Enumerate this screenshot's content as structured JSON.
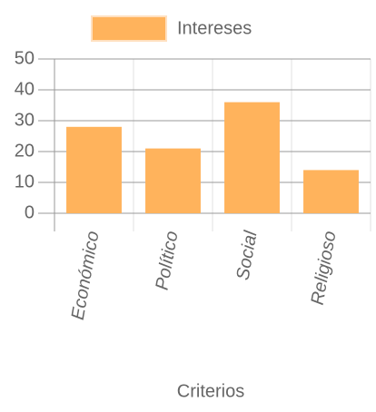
{
  "chart_data": {
    "type": "bar",
    "categories": [
      "Económico",
      "Político",
      "Social",
      "Religioso"
    ],
    "series": [
      {
        "name": "Intereses",
        "color": "#ffb35c",
        "values": [
          28,
          21,
          36,
          14
        ]
      }
    ],
    "x_label": "Criterios",
    "ylim": [
      0,
      50
    ],
    "yticks": [
      0,
      10,
      20,
      30,
      40,
      50
    ],
    "grid": true,
    "legend": "top"
  }
}
